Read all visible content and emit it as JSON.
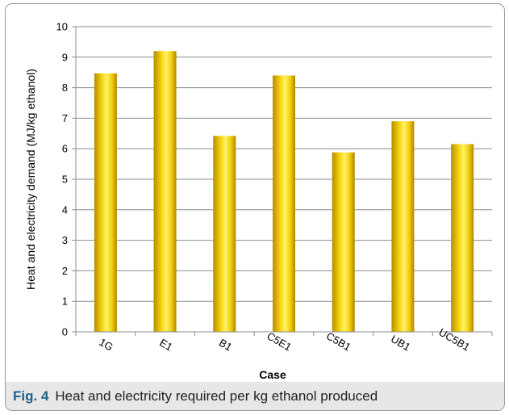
{
  "figure": {
    "caption_label": "Fig. 4",
    "caption_text": "Heat and electricity required per kg ethanol produced"
  },
  "chart_data": {
    "type": "bar",
    "categories": [
      "1G",
      "E1",
      "B1",
      "C5E1",
      "C5B1",
      "UB1",
      "UC5B1"
    ],
    "values": [
      8.47,
      9.2,
      6.42,
      8.4,
      5.88,
      6.9,
      6.15
    ],
    "xlabel": "Case",
    "ylabel": "Heat and electricity demand (MJ/kg ethanol)",
    "ylim": [
      0,
      10
    ],
    "yticks": [
      0,
      1,
      2,
      3,
      4,
      5,
      6,
      7,
      8,
      9,
      10
    ],
    "grid": true,
    "bar_color": "#e6bb00"
  }
}
